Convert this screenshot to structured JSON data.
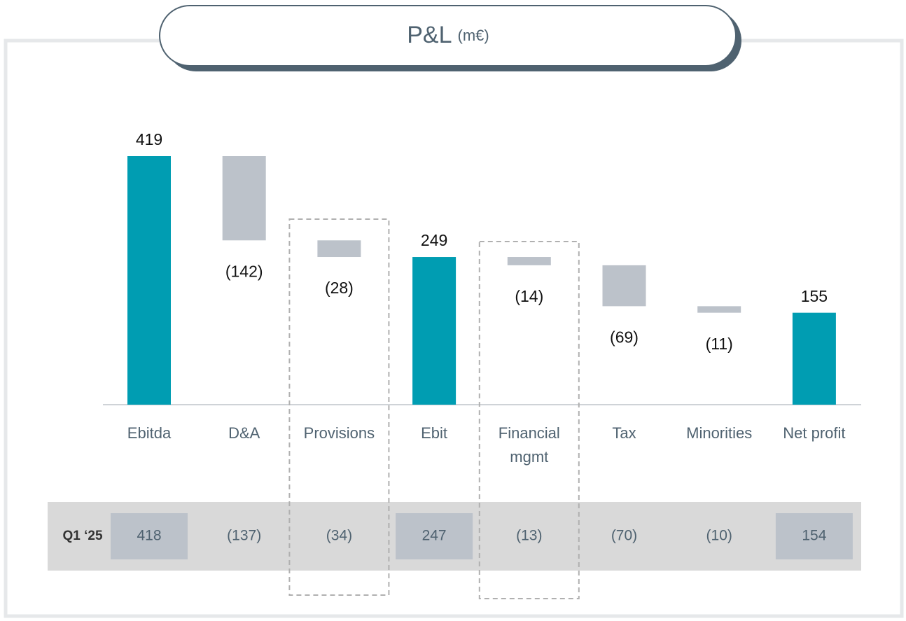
{
  "chart_data": {
    "type": "waterfall",
    "title": "P&L",
    "subtitle": "(m€)",
    "categories": [
      "Ebitda",
      "D&A",
      "Provisions",
      "Ebit",
      "Financial\nmgmt",
      "Tax",
      "Minorities",
      "Net profit"
    ],
    "measure": [
      "total",
      "relative",
      "relative",
      "total",
      "relative",
      "relative",
      "relative",
      "total"
    ],
    "values": [
      419,
      -142,
      -28,
      249,
      -14,
      -69,
      -11,
      155
    ],
    "value_labels": [
      "419",
      "(142)",
      "(28)",
      "249",
      "(14)",
      "(69)",
      "(11)",
      "155"
    ],
    "total_color": "#009db2",
    "delta_color": "#bcc2ca",
    "highlight": [
      2,
      4
    ],
    "comparison": {
      "label": "Q1 ‘25",
      "values": [
        418,
        -137,
        -34,
        247,
        -13,
        -70,
        -10,
        154
      ],
      "value_labels": [
        "418",
        "(137)",
        "(34)",
        "247",
        "(13)",
        "(70)",
        "(10)",
        "154"
      ]
    }
  }
}
